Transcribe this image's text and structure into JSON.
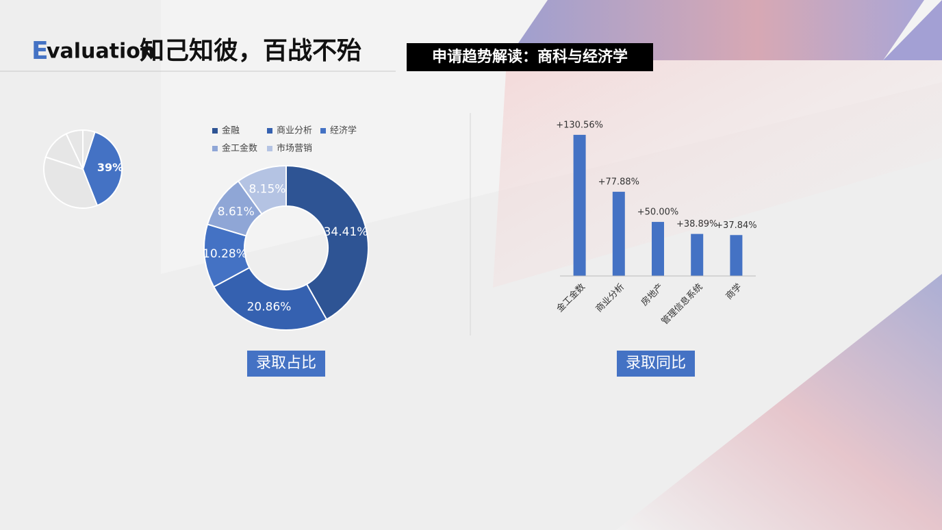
{
  "header": {
    "title_initial": "E",
    "title_rest": "valuation",
    "slogan": "知己知彼，百战不殆",
    "badge": "申请趋势解读：商科与经济学"
  },
  "chart_data": [
    {
      "type": "pie",
      "values": [
        39,
        36,
        13,
        7,
        5
      ],
      "value_labels": [
        "39%",
        null,
        null,
        null,
        null
      ],
      "colors": [
        "#4472c4",
        "#e6e6e6",
        "#e6e6e6",
        "#e6e6e6",
        "#e6e6e6"
      ]
    },
    {
      "type": "doughnut",
      "categories": [
        "金融",
        "商业分析",
        "经济学",
        "金工金数",
        "市场营销"
      ],
      "values": [
        34.41,
        20.86,
        10.28,
        8.61,
        8.15
      ],
      "value_labels": [
        "34.41%",
        "20.86%",
        "10.28%",
        "8.61%",
        "8.15%"
      ],
      "colors": [
        "#2e5494",
        "#3561b0",
        "#4472c4",
        "#8fa6d6",
        "#b4c3e3"
      ],
      "caption": "录取占比"
    },
    {
      "type": "bar",
      "categories": [
        "金工金数",
        "商业分析",
        "房地产",
        "管理信息系统",
        "商学"
      ],
      "values": [
        130.56,
        77.88,
        50.0,
        38.89,
        37.84
      ],
      "value_labels": [
        "+130.56%",
        "+77.88%",
        "+50.00%",
        "+38.89%",
        "+37.84%"
      ],
      "color": "#4472c4",
      "ylim": [
        0,
        140
      ],
      "caption": "录取同比"
    }
  ]
}
